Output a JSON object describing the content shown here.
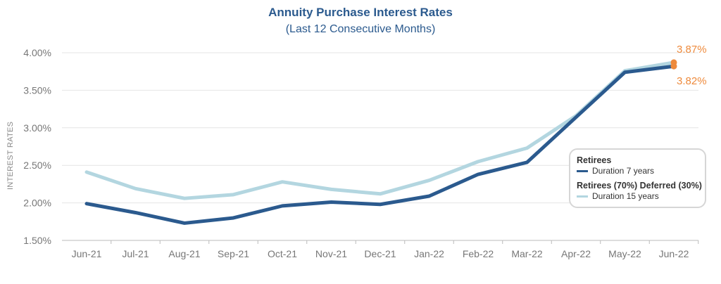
{
  "chart_data": {
    "type": "line",
    "title": "Annuity Purchase Interest Rates",
    "subtitle": "(Last 12 Consecutive Months)",
    "ylabel": "INTEREST RATES",
    "xlabel": "",
    "categories": [
      "Jun-21",
      "Jul-21",
      "Aug-21",
      "Sep-21",
      "Oct-21",
      "Nov-21",
      "Dec-21",
      "Jan-22",
      "Feb-22",
      "Mar-22",
      "Apr-22",
      "May-22",
      "Jun-22"
    ],
    "yticks": [
      "1.50%",
      "2.00%",
      "2.50%",
      "3.00%",
      "3.50%",
      "4.00%"
    ],
    "ylim": [
      1.5,
      4.0
    ],
    "grid": true,
    "series": [
      {
        "name": "Duration 7 years",
        "group": "Retirees",
        "color": "#2b5a8e",
        "values": [
          1.99,
          1.87,
          1.73,
          1.8,
          1.96,
          2.01,
          1.98,
          2.09,
          2.38,
          2.54,
          3.14,
          3.74,
          3.82
        ]
      },
      {
        "name": "Duration 15 years",
        "group": "Retirees (70%) Deferred (30%)",
        "color": "#b3d6e0",
        "values": [
          2.41,
          2.19,
          2.06,
          2.11,
          2.28,
          2.18,
          2.12,
          2.3,
          2.55,
          2.73,
          3.16,
          3.76,
          3.87
        ]
      }
    ],
    "data_labels": [
      {
        "series": "Duration 15 years",
        "category": "Jun-22",
        "text": "3.87%"
      },
      {
        "series": "Duration 7 years",
        "category": "Jun-22",
        "text": "3.82%"
      }
    ],
    "endpoint_marker_color": "#ee8a3c",
    "legend_position": "right"
  },
  "legend": {
    "group1_title": "Retirees",
    "group1_item": "Duration 7 years",
    "group2_title": "Retirees (70%) Deferred (30%)",
    "group2_item": "Duration 15 years"
  }
}
